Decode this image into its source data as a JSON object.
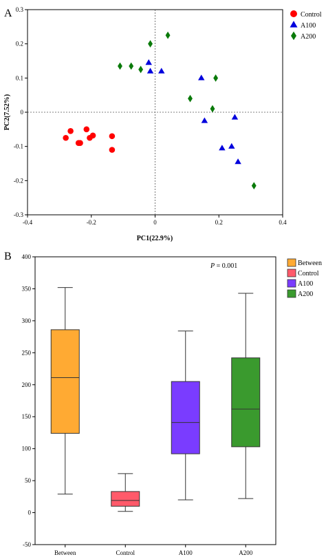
{
  "panels": {
    "a_label": "A",
    "b_label": "B"
  },
  "chart_data": [
    {
      "type": "scatter",
      "xlabel": "PC1(22.9%)",
      "ylabel": "PC2(7.52%)",
      "xlim": [
        -0.4,
        0.4
      ],
      "ylim": [
        -0.3,
        0.3
      ],
      "x_ticks": [
        -0.4,
        -0.2,
        0,
        0.2,
        0.4
      ],
      "x_tick_labels": [
        "-0.4",
        "-0.2",
        "0",
        "0.2",
        "0.4"
      ],
      "y_ticks": [
        -0.3,
        -0.2,
        -0.1,
        0,
        0.1,
        0.2,
        0.3
      ],
      "y_tick_labels": [
        "-0.3",
        "-0.2",
        "-0.1",
        "0",
        "0.1",
        "0.2",
        "0.3"
      ],
      "reference_lines": {
        "x": 0,
        "y": 0
      },
      "legend_position": "top-right",
      "series": [
        {
          "name": "Control",
          "marker": "circle",
          "color": "#ff0000",
          "points": [
            [
              -0.28,
              -0.075
            ],
            [
              -0.265,
              -0.055
            ],
            [
              -0.24,
              -0.09
            ],
            [
              -0.235,
              -0.09
            ],
            [
              -0.215,
              -0.05
            ],
            [
              -0.205,
              -0.075
            ],
            [
              -0.195,
              -0.068
            ],
            [
              -0.135,
              -0.07
            ],
            [
              -0.135,
              -0.11
            ]
          ]
        },
        {
          "name": "A100",
          "marker": "triangle",
          "color": "#0000dd",
          "points": [
            [
              -0.02,
              0.145
            ],
            [
              -0.015,
              0.12
            ],
            [
              0.02,
              0.12
            ],
            [
              0.145,
              0.1
            ],
            [
              0.155,
              -0.025
            ],
            [
              0.21,
              -0.105
            ],
            [
              0.24,
              -0.1
            ],
            [
              0.25,
              -0.015
            ],
            [
              0.26,
              -0.145
            ]
          ]
        },
        {
          "name": "A200",
          "marker": "diamond",
          "color": "#0a7a0a",
          "points": [
            [
              -0.11,
              0.135
            ],
            [
              -0.075,
              0.135
            ],
            [
              -0.045,
              0.125
            ],
            [
              -0.015,
              0.2
            ],
            [
              0.04,
              0.225
            ],
            [
              0.11,
              0.04
            ],
            [
              0.18,
              0.01
            ],
            [
              0.19,
              0.1
            ],
            [
              0.31,
              -0.215
            ]
          ]
        }
      ]
    },
    {
      "type": "box",
      "annotation": "P = 0.001",
      "annotation_italic": "P",
      "annotation_rest": " = 0.001",
      "ylim": [
        -50,
        400
      ],
      "y_ticks": [
        -50,
        0,
        50,
        100,
        150,
        200,
        250,
        300,
        350,
        400
      ],
      "y_tick_labels": [
        "-50",
        "0",
        "50",
        "100",
        "150",
        "200",
        "250",
        "300",
        "350",
        "400"
      ],
      "categories": [
        "Between",
        "Control",
        "A100",
        "A200"
      ],
      "legend_position": "right",
      "boxes": [
        {
          "name": "Between",
          "color": "#ffaa33",
          "min": 29,
          "q1": 124,
          "median": 211,
          "q3": 286,
          "max": 352
        },
        {
          "name": "Control",
          "color": "#ff5a6a",
          "min": 2,
          "q1": 10,
          "median": 19,
          "q3": 33,
          "max": 61
        },
        {
          "name": "A100",
          "color": "#7a3cff",
          "min": 20,
          "q1": 92,
          "median": 141,
          "q3": 205,
          "max": 284
        },
        {
          "name": "A200",
          "color": "#3a9a2e",
          "min": 22,
          "q1": 103,
          "median": 162,
          "q3": 242,
          "max": 343
        }
      ]
    }
  ]
}
